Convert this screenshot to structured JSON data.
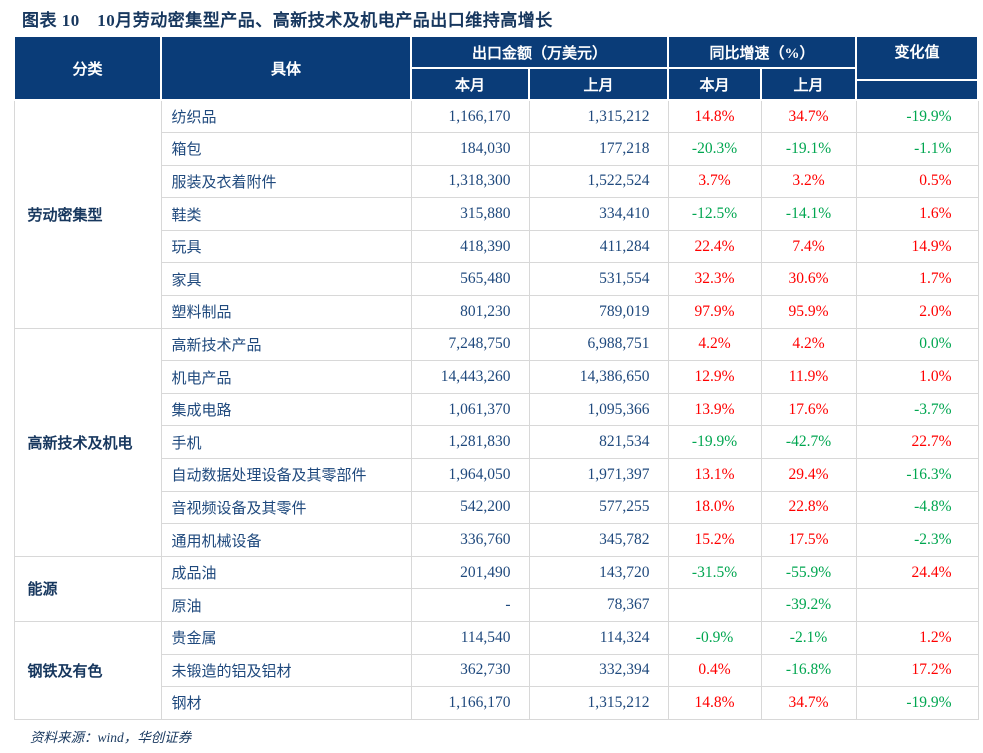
{
  "title": "图表 10　10月劳动密集型产品、高新技术及机电产品出口维持高增长",
  "source": "资料来源：wind，华创证券",
  "colors": {
    "header_bg": "#0A3C78",
    "navy_text": "#17375E",
    "number_text": "#1F497D",
    "positive_red": "#FF0000",
    "negative_green": "#00A650",
    "grid_line": "#D8D8D8"
  },
  "table": {
    "headers": {
      "category": "分类",
      "detail": "具体",
      "export_amount": "出口金额（万美元）",
      "yoy_growth": "同比增速（%）",
      "change_value": "变化值",
      "this_month_amount": "本月",
      "last_month_amount": "上月",
      "this_month_yoy": "本月",
      "last_month_yoy": "上月"
    },
    "groups": [
      {
        "category": "劳动密集型",
        "rows": [
          {
            "detail": "纺织品",
            "amount_this": "1,166,170",
            "amount_last": "1,315,212",
            "yoy_this": "14.8%",
            "yoy_last": "34.7%",
            "change": "-19.9%"
          },
          {
            "detail": "箱包",
            "amount_this": "184,030",
            "amount_last": "177,218",
            "yoy_this": "-20.3%",
            "yoy_last": "-19.1%",
            "change": "-1.1%"
          },
          {
            "detail": "服装及衣着附件",
            "amount_this": "1,318,300",
            "amount_last": "1,522,524",
            "yoy_this": "3.7%",
            "yoy_last": "3.2%",
            "change": "0.5%"
          },
          {
            "detail": "鞋类",
            "amount_this": "315,880",
            "amount_last": "334,410",
            "yoy_this": "-12.5%",
            "yoy_last": "-14.1%",
            "change": "1.6%"
          },
          {
            "detail": "玩具",
            "amount_this": "418,390",
            "amount_last": "411,284",
            "yoy_this": "22.4%",
            "yoy_last": "7.4%",
            "change": "14.9%"
          },
          {
            "detail": "家具",
            "amount_this": "565,480",
            "amount_last": "531,554",
            "yoy_this": "32.3%",
            "yoy_last": "30.6%",
            "change": "1.7%"
          },
          {
            "detail": "塑料制品",
            "amount_this": "801,230",
            "amount_last": "789,019",
            "yoy_this": "97.9%",
            "yoy_last": "95.9%",
            "change": "2.0%"
          }
        ]
      },
      {
        "category": "高新技术及机电",
        "rows": [
          {
            "detail": "高新技术产品",
            "amount_this": "7,248,750",
            "amount_last": "6,988,751",
            "yoy_this": "4.2%",
            "yoy_last": "4.2%",
            "change": "0.0%"
          },
          {
            "detail": "机电产品",
            "amount_this": "14,443,260",
            "amount_last": "14,386,650",
            "yoy_this": "12.9%",
            "yoy_last": "11.9%",
            "change": "1.0%"
          },
          {
            "detail": "集成电路",
            "amount_this": "1,061,370",
            "amount_last": "1,095,366",
            "yoy_this": "13.9%",
            "yoy_last": "17.6%",
            "change": "-3.7%"
          },
          {
            "detail": "手机",
            "amount_this": "1,281,830",
            "amount_last": "821,534",
            "yoy_this": "-19.9%",
            "yoy_last": "-42.7%",
            "change": "22.7%"
          },
          {
            "detail": "自动数据处理设备及其零部件",
            "amount_this": "1,964,050",
            "amount_last": "1,971,397",
            "yoy_this": "13.1%",
            "yoy_last": "29.4%",
            "change": "-16.3%"
          },
          {
            "detail": "音视频设备及其零件",
            "amount_this": "542,200",
            "amount_last": "577,255",
            "yoy_this": "18.0%",
            "yoy_last": "22.8%",
            "change": "-4.8%"
          },
          {
            "detail": "通用机械设备",
            "amount_this": "336,760",
            "amount_last": "345,782",
            "yoy_this": "15.2%",
            "yoy_last": "17.5%",
            "change": "-2.3%"
          }
        ]
      },
      {
        "category": "能源",
        "rows": [
          {
            "detail": "成品油",
            "amount_this": "201,490",
            "amount_last": "143,720",
            "yoy_this": "-31.5%",
            "yoy_last": "-55.9%",
            "change": "24.4%"
          },
          {
            "detail": "原油",
            "amount_this": "-",
            "amount_last": "78,367",
            "yoy_this": "",
            "yoy_last": "-39.2%",
            "change": ""
          }
        ]
      },
      {
        "category": "钢铁及有色",
        "rows": [
          {
            "detail": "贵金属",
            "amount_this": "114,540",
            "amount_last": "114,324",
            "yoy_this": "-0.9%",
            "yoy_last": "-2.1%",
            "change": "1.2%"
          },
          {
            "detail": "未锻造的铝及铝材",
            "amount_this": "362,730",
            "amount_last": "332,394",
            "yoy_this": "0.4%",
            "yoy_last": "-16.8%",
            "change": "17.2%"
          },
          {
            "detail": "钢材",
            "amount_this": "1,166,170",
            "amount_last": "1,315,212",
            "yoy_this": "14.8%",
            "yoy_last": "34.7%",
            "change": "-19.9%"
          }
        ]
      }
    ]
  }
}
